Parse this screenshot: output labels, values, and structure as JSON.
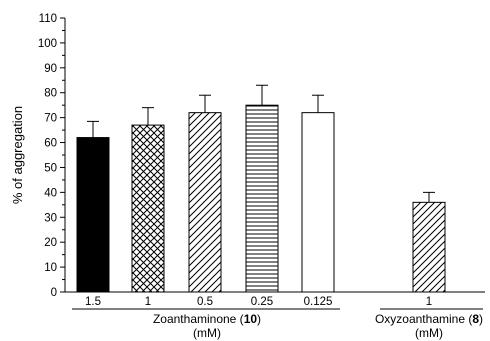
{
  "chart_data": {
    "type": "bar",
    "ylabel": "% of aggregation",
    "ylim": [
      0,
      110
    ],
    "yticks": [
      0,
      10,
      20,
      30,
      40,
      50,
      60,
      70,
      80,
      90,
      100,
      110
    ],
    "categories": [
      "1.5",
      "1",
      "0.5",
      "0.25",
      "0.125",
      "1"
    ],
    "values": [
      62,
      67,
      72,
      75,
      72,
      36
    ],
    "errors": [
      6.5,
      7,
      7,
      8,
      7,
      4
    ],
    "patterns": [
      "solid-black",
      "crosshatch",
      "diagonal",
      "horizontal",
      "white",
      "diagonal"
    ],
    "groups": [
      {
        "name": "Zoanthaminone",
        "compound": "10",
        "unit": "(mM)"
      },
      {
        "name": "Oxyzoanthamine",
        "compound": "8",
        "unit": "(mM)"
      }
    ]
  }
}
